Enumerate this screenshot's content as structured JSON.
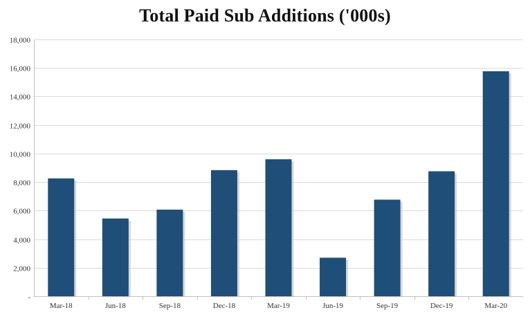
{
  "chart_data": {
    "type": "bar",
    "title": "Total Paid Sub Additions ('000s)",
    "xlabel": "",
    "ylabel": "",
    "categories": [
      "Mar-18",
      "Jun-18",
      "Sep-18",
      "Dec-18",
      "Mar-19",
      "Jun-19",
      "Sep-19",
      "Dec-19",
      "Mar-20"
    ],
    "series": [
      {
        "values": [
          8260,
          5450,
          6070,
          8840,
          9600,
          2700,
          6770,
          8760,
          15770
        ]
      }
    ],
    "ylim": [
      0,
      18000
    ],
    "yticks": [
      0,
      2000,
      4000,
      6000,
      8000,
      10000,
      12000,
      14000,
      16000,
      18000
    ],
    "ytick_labels": [
      "-",
      "2,000",
      "4,000",
      "6,000",
      "8,000",
      "10,000",
      "12,000",
      "14,000",
      "16,000",
      "18,000"
    ],
    "grid": true,
    "legend": "none",
    "colors": {
      "bar": "#1f4e79",
      "bar_shadow": "#c8c8c8",
      "grid": "#d9d9d9",
      "axis": "#bfbfbf"
    }
  }
}
